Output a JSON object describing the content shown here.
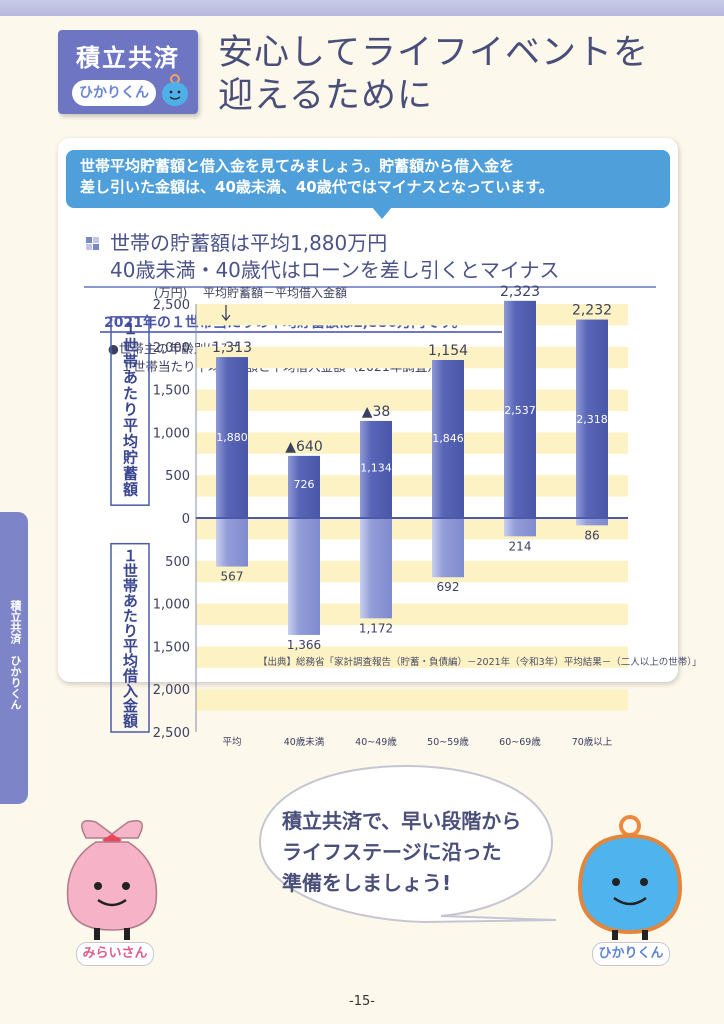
{
  "header": {
    "badge_title": "積立共済",
    "badge_sub": "ひかりくん",
    "title_line1": "安心してライフイベントを",
    "title_line2": "迎えるために"
  },
  "intro": {
    "line1": "世帯平均貯蓄額と借入金を見てみましょう。貯蓄額から借入金を",
    "line2": "差し引いた金額は、40歳未満、40歳代ではマイナスとなっています。"
  },
  "subhead": {
    "line1": "世帯の貯蓄額は平均1,880万円",
    "line2": "40歳未満・40歳代はローンを差し引くとマイナス"
  },
  "caption": "2021年の１世帯当たりの平均貯蓄額は1,880万円です。",
  "note": {
    "line1": "●世帯主の年齢別にみた",
    "line2": "　１世帯当たり平均貯蓄額と平均借入金額（2021年調査）"
  },
  "source": "【出典】総務省「家計調査報告（貯蓄・負債編）－2021年（令和3年）平均結果－（二人以上の世帯）」",
  "side_label": "積立共済　ひかりくん",
  "speech": {
    "line1": "積立共済で、早い段階から",
    "line2": "ライフステージに沿った",
    "line3": "準備をしましょう!"
  },
  "characters": {
    "left_name": "みらいさん",
    "right_name": "ひかりくん"
  },
  "page_number": "-15-",
  "colors": {
    "bar": "#6a76c2",
    "band": "#fdf2c4",
    "accent_blue": "#4f9fdb",
    "axis_line": "#4d5aa8"
  },
  "chart_data": {
    "type": "bar",
    "unit_label": "(万円)",
    "annotation": "平均貯蓄額－平均借入金額",
    "y_label_top": "１世帯あたり平均貯蓄額",
    "y_label_bottom": "１世帯あたり平均借入金額",
    "categories": [
      "平均",
      "40歳未満",
      "40~49歳",
      "50~59歳",
      "60~69歳",
      "70歳以上"
    ],
    "series": [
      {
        "values": [
          1880,
          726,
          1134,
          1846,
          2537,
          2318
        ]
      },
      {
        "values": [
          567,
          1366,
          1172,
          692,
          214,
          86
        ]
      }
    ],
    "net": [
      "1,313",
      "▲640",
      "▲38",
      "1,154",
      "2,323",
      "2,232"
    ],
    "savings_labels": [
      "1,880",
      "726",
      "1,134",
      "1,846",
      "2,537",
      "2,318"
    ],
    "debt_labels": [
      "567",
      "1,366",
      "1,172",
      "692",
      "214",
      "86"
    ],
    "yticks_top": [
      "2,500",
      "2,000",
      "1,500",
      "1,000",
      "500",
      "0"
    ],
    "yticks_bottom": [
      "500",
      "1,000",
      "1,500",
      "2,000",
      "2,500"
    ],
    "ylim": [
      -2500,
      2500
    ],
    "grid": "horizontal bands"
  }
}
